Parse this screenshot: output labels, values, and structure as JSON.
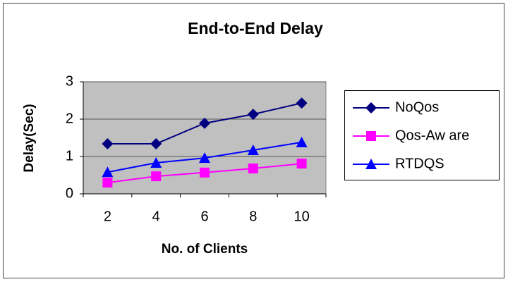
{
  "chart_data": {
    "type": "line",
    "title": "End-to-End  Delay",
    "x_label": "No. of Clients",
    "y_label": "Delay(Sec)",
    "categories": [
      "2",
      "4",
      "6",
      "8",
      "10"
    ],
    "series": [
      {
        "name": "NoQos",
        "color": "#000080",
        "marker": "diamond",
        "values": [
          1.34,
          1.34,
          1.89,
          2.13,
          2.43
        ]
      },
      {
        "name": "Qos-Aw are",
        "color": "#ff00ff",
        "marker": "square",
        "values": [
          0.3,
          0.47,
          0.57,
          0.68,
          0.81
        ]
      },
      {
        "name": "RTDQS",
        "color": "#0000ff",
        "marker": "triangle",
        "values": [
          0.58,
          0.83,
          0.96,
          1.17,
          1.38
        ]
      }
    ],
    "ylim": [
      0,
      3
    ],
    "yticks": [
      0,
      1,
      2,
      3
    ],
    "grid": true,
    "legend": "right"
  }
}
